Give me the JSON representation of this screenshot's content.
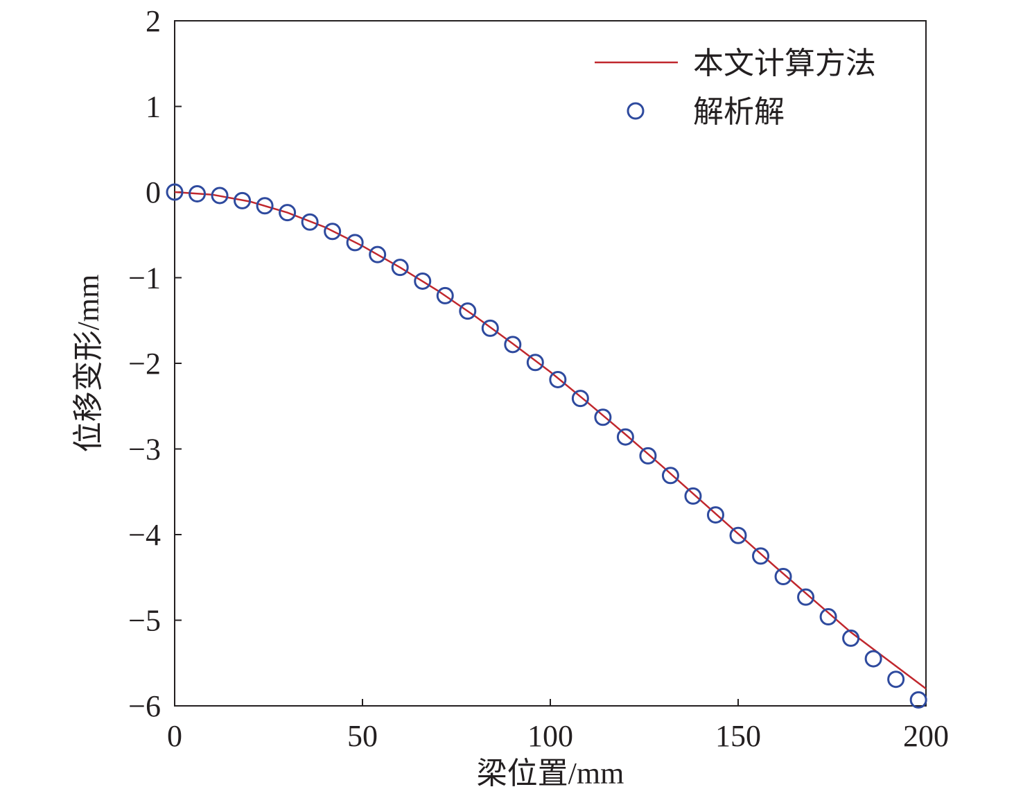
{
  "chart_data": {
    "type": "line",
    "title": "",
    "xlabel": "梁位置/mm",
    "ylabel": "位移变形/mm",
    "xlim": [
      0,
      200
    ],
    "ylim": [
      -6,
      2
    ],
    "xticks": [
      0,
      50,
      100,
      150,
      200
    ],
    "yticks": [
      2,
      1,
      0,
      -1,
      -2,
      -3,
      -4,
      -5,
      -6
    ],
    "xtick_labels": [
      "0",
      "50",
      "100",
      "150",
      "200"
    ],
    "ytick_labels": [
      "2",
      "1",
      "0",
      "−1",
      "−2",
      "−3",
      "−4",
      "−5",
      "−6"
    ],
    "grid": false,
    "legend_position": "top-right",
    "series": [
      {
        "name": "本文计算方法",
        "kind": "line",
        "color": "#c0272d",
        "x": [
          0,
          10,
          20,
          30,
          40,
          50,
          60,
          70,
          80,
          90,
          100,
          110,
          120,
          130,
          140,
          150,
          160,
          170,
          180,
          190,
          200
        ],
        "y": [
          0,
          -0.03,
          -0.11,
          -0.24,
          -0.41,
          -0.63,
          -0.88,
          -1.15,
          -1.45,
          -1.77,
          -2.1,
          -2.46,
          -2.83,
          -3.21,
          -3.6,
          -3.99,
          -4.38,
          -4.76,
          -5.14,
          -5.47,
          -5.8
        ]
      },
      {
        "name": "解析解",
        "kind": "scatter",
        "color": "#2e4a9e",
        "x": [
          0,
          6,
          12,
          18,
          24,
          30,
          36,
          42,
          48,
          54,
          60,
          66,
          72,
          78,
          84,
          90,
          96,
          102,
          108,
          114,
          120,
          126,
          132,
          138,
          144,
          150,
          156,
          162,
          168,
          174,
          180,
          186,
          192,
          198
        ],
        "y": [
          0,
          -0.02,
          -0.04,
          -0.1,
          -0.16,
          -0.24,
          -0.35,
          -0.46,
          -0.59,
          -0.73,
          -0.88,
          -1.04,
          -1.21,
          -1.39,
          -1.59,
          -1.78,
          -1.99,
          -2.19,
          -2.41,
          -2.63,
          -2.86,
          -3.08,
          -3.31,
          -3.55,
          -3.77,
          -4.01,
          -4.25,
          -4.49,
          -4.73,
          -4.96,
          -5.21,
          -5.45,
          -5.69,
          -5.93
        ]
      }
    ]
  }
}
